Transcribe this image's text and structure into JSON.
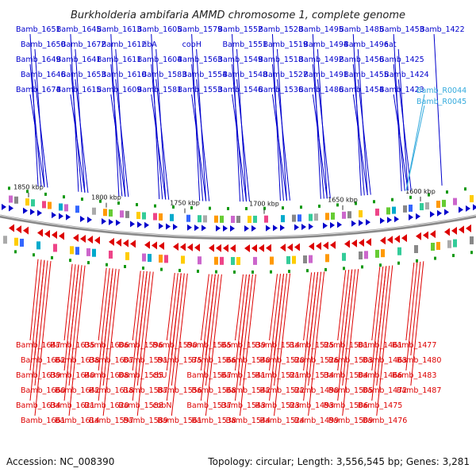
{
  "title": "Burkholderia ambifaria AMMD chromosome 1, complete genome",
  "accession": "Accession: NC_008390",
  "summary": "Topology: circular; Length: 3,556,545 bp; Genes: 3,281",
  "colors": {
    "forward": "#0000cc",
    "reverse": "#dd0000",
    "rna": "#33aadd",
    "ring": "#888888",
    "gc": "#119911"
  },
  "ticks": [
    "1850 kbp",
    "1800 kbp",
    "1750 kbp",
    "1700 kbp",
    "1650 kbp",
    "1600 kbp"
  ],
  "forward_genes": [
    "Bamb_1651",
    "Bamb_1650",
    "Bamb_1649",
    "Bamb_1646",
    "Bamb_1674",
    "Bamb_1645",
    "Bamb_1672",
    "Bamb_1641",
    "Bamb_1653",
    "Bamb_1615",
    "Bamb_1613",
    "Bamb_1612",
    "Bamb_1611",
    "Bamb_1610",
    "Bamb_1609",
    "Bamb_1605",
    "ribA",
    "Bamb_1604",
    "Bamb_1583",
    "Bamb_1581",
    "Bamb_1579",
    "cobH",
    "Bamb_1563",
    "Bamb_1554",
    "Bamb_1553",
    "Bamb_1552",
    "Bamb_1551",
    "Bamb_1549",
    "Bamb_1548",
    "Bamb_1546",
    "Bamb_1528",
    "Bamb_1519",
    "Bamb_1518",
    "Bamb_1527",
    "Bamb_1536",
    "Bamb_1495",
    "Bamb_1494",
    "Bamb_1492",
    "Bamb_1491",
    "Bamb_1486",
    "Bamb_1485",
    "Bamb_1496",
    "Bamb_1456",
    "Bamb_1455",
    "Bamb_1454",
    "Bamb_1453",
    "aat",
    "Bamb_1425",
    "Bamb_1424",
    "Bamb_1423",
    "Bamb_1422"
  ],
  "rna_genes": [
    "Bamb_R0044",
    "Bamb_R0045"
  ],
  "reverse_genes": [
    "Bamb_1647",
    "Bamb_1662",
    "Bamb_1639",
    "Bamb_1660",
    "Bamb_1634",
    "Bamb_1661",
    "Bamb_1635",
    "Bamb_1638",
    "Bamb_1640",
    "Bamb_1642",
    "Bamb_1621",
    "Bamb_1614",
    "Bamb_1606",
    "Bamb_1607",
    "Bamb_1608",
    "Bamb_1618",
    "Bamb_1620",
    "Bamb_1597",
    "Bamb_1596",
    "Bamb_1591",
    "Bamb_1585",
    "Bamb_1587",
    "Bamb_1588",
    "Bamb_1589",
    "Bamb_1590",
    "Bamb_1575",
    "cbU",
    "Bamb_1556",
    "cobN",
    "Bamb_1561",
    "Bamb_1565",
    "Bamb_1566",
    "Bamb_1567",
    "Bamb_1568",
    "Bamb_1537",
    "Bamb_1538",
    "Bamb_1539",
    "Bamb_1540",
    "Bamb_1541",
    "Bamb_1542",
    "Bamb_1543",
    "Bamb_1544",
    "Bamb_1514",
    "Bamb_1520",
    "Bamb_1521",
    "Bamb_1522",
    "Bamb_1523",
    "Bamb_1524",
    "Bamb_1525",
    "Bamb_1526",
    "Bamb_1534",
    "Bamb_1490",
    "Bamb_1493",
    "Bamb_1499",
    "Bamb_1501",
    "Bamb_1503",
    "Bamb_1504",
    "Bamb_1505",
    "Bamb_1506",
    "Bamb_1509",
    "Bamb_1461",
    "Bamb_1463",
    "Bamb_1466",
    "Bamb_1472",
    "Bamb_1475",
    "Bamb_1476",
    "Bamb_1477",
    "Bamb_1480",
    "Bamb_1483",
    "Bamb_1487"
  ]
}
